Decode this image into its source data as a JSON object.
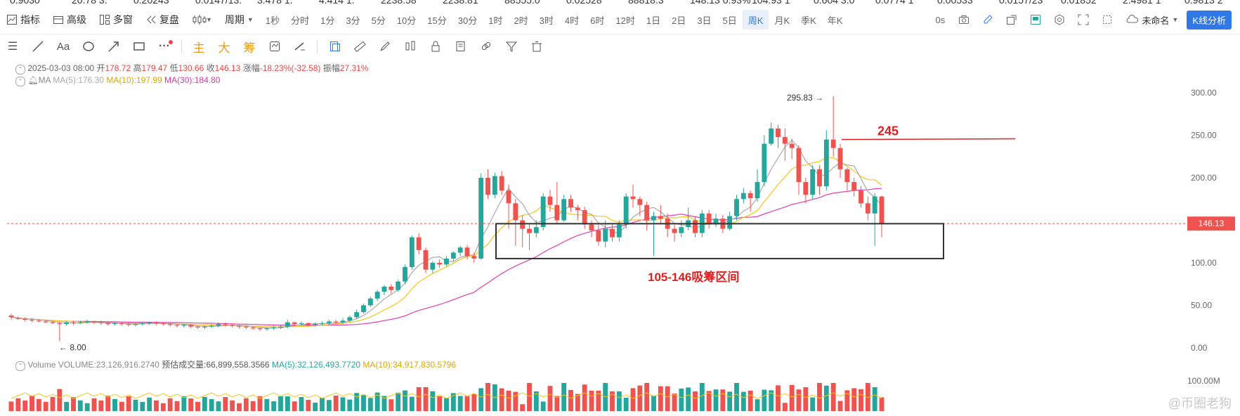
{
  "ticker": [
    "0.9030",
    "20.78 3.",
    "0.20243",
    "0.0147/13.",
    "3.478 1.",
    "4.414 1.",
    "2238.58",
    "2238.81",
    "88555.0",
    "0.02528",
    "88818.3",
    "148.13 0.93%",
    "104.93 1",
    "0.604 3.0",
    "0.0774 1",
    "0.00533",
    "0.0157/23",
    "0.01852",
    "2.4981 1",
    "0.9813 2"
  ],
  "toolbar": {
    "indicators": "指标",
    "advanced": "高级",
    "multi_window": "多窗",
    "replay": "复盘",
    "period": "周期",
    "intervals": [
      "1秒",
      "分时",
      "1分",
      "3分",
      "5分",
      "10分",
      "15分",
      "30分",
      "1时",
      "2时",
      "3时",
      "4时",
      "6时",
      "12时",
      "1日",
      "2日",
      "3日",
      "5日",
      "周K",
      "月K",
      "季K",
      "年K"
    ],
    "active_interval": "周K",
    "timer": "0s",
    "unnamed": "未命名",
    "kline_analysis": "K线分析"
  },
  "drawbar": {
    "main": "主",
    "big": "大",
    "chip": "筹"
  },
  "info": {
    "date": "2025-03-03 08:00",
    "open_label": "开",
    "open": "178.72",
    "high_label": "高",
    "high": "179.47",
    "low_label": "低",
    "low": "130.66",
    "close_label": "收",
    "close": "146.13",
    "change_label": "涨幅",
    "change": "-18.23%(-32.58)",
    "amp_label": "振幅",
    "amp": "27.31%",
    "ma_label": "MA",
    "ma5": "MA(5):176.30",
    "ma10": "MA(10):197.99",
    "ma30": "MA(30):184.80"
  },
  "volume_info": {
    "title": "Volume",
    "volume": "VOLUME:23,126,916.2740",
    "est": "预估成交量:66,899,558.3566",
    "ma5": "MA(5):32,126,493.7720",
    "ma10": "MA(10):34,917,830.5796"
  },
  "watermark": "@币圈老狗",
  "colors": {
    "up": "#26a69a",
    "down": "#ef5350",
    "ma5": "#aaaaaa",
    "ma10": "#f5c518",
    "ma30": "#e040b0",
    "accent": "#2f78e6",
    "annotation": "#e02020"
  },
  "chart_data": {
    "type": "candlestick",
    "y_axis_ticks": [
      "300.00",
      "250.00",
      "200.00",
      "150.00",
      "100.00",
      "50.00",
      "0.00"
    ],
    "ylim": [
      -5,
      320
    ],
    "last_price": "146.13",
    "high_label": "295.83",
    "low_label": "8.00",
    "volume_axis_tick": "100.00M",
    "annotations": [
      {
        "text": "245",
        "type": "horizontal-line",
        "y": 245
      },
      {
        "text": "105-146吸筹区间",
        "type": "box",
        "y_low": 105,
        "y_high": 146
      }
    ],
    "candles": [
      [
        38,
        36,
        40,
        33
      ],
      [
        35,
        34,
        37,
        33
      ],
      [
        34,
        33,
        36,
        31
      ],
      [
        33,
        32,
        35,
        30
      ],
      [
        32,
        31,
        34,
        30
      ],
      [
        31,
        30,
        33,
        29
      ],
      [
        30,
        29,
        32,
        28
      ],
      [
        29,
        28,
        31,
        8
      ],
      [
        28,
        30,
        31,
        26
      ],
      [
        30,
        29,
        32,
        27
      ],
      [
        29,
        30,
        32,
        28
      ],
      [
        30,
        31,
        33,
        29
      ],
      [
        31,
        30,
        32,
        28
      ],
      [
        30,
        29,
        32,
        27
      ],
      [
        29,
        28,
        31,
        26
      ],
      [
        28,
        29,
        30,
        26
      ],
      [
        29,
        28,
        30,
        26
      ],
      [
        28,
        27,
        30,
        25
      ],
      [
        27,
        28,
        29,
        25
      ],
      [
        28,
        29,
        31,
        26
      ],
      [
        29,
        30,
        31,
        27
      ],
      [
        30,
        29,
        31,
        27
      ],
      [
        29,
        28,
        30,
        26
      ],
      [
        28,
        27,
        29,
        25
      ],
      [
        27,
        26,
        28,
        24
      ],
      [
        26,
        27,
        28,
        24
      ],
      [
        27,
        25,
        28,
        23
      ],
      [
        25,
        24,
        26,
        22
      ],
      [
        24,
        25,
        26,
        22
      ],
      [
        25,
        26,
        28,
        23
      ],
      [
        26,
        28,
        30,
        24
      ],
      [
        28,
        27,
        30,
        25
      ],
      [
        27,
        26,
        28,
        24
      ],
      [
        26,
        25,
        27,
        23
      ],
      [
        25,
        24,
        26,
        22
      ],
      [
        24,
        23,
        25,
        21
      ],
      [
        23,
        22,
        24,
        20
      ],
      [
        22,
        23,
        24,
        20
      ],
      [
        23,
        24,
        26,
        21
      ],
      [
        24,
        25,
        27,
        22
      ],
      [
        25,
        30,
        33,
        23
      ],
      [
        30,
        28,
        31,
        25
      ],
      [
        28,
        29,
        31,
        26
      ],
      [
        29,
        27,
        30,
        25
      ],
      [
        27,
        28,
        30,
        25
      ],
      [
        28,
        29,
        31,
        26
      ],
      [
        29,
        31,
        33,
        27
      ],
      [
        31,
        30,
        33,
        28
      ],
      [
        30,
        32,
        35,
        28
      ],
      [
        32,
        36,
        38,
        30
      ],
      [
        36,
        42,
        45,
        34
      ],
      [
        42,
        50,
        52,
        40
      ],
      [
        50,
        58,
        60,
        48
      ],
      [
        58,
        66,
        68,
        55
      ],
      [
        66,
        72,
        74,
        62
      ],
      [
        72,
        68,
        75,
        64
      ],
      [
        68,
        78,
        80,
        66
      ],
      [
        78,
        95,
        98,
        75
      ],
      [
        95,
        130,
        132,
        92
      ],
      [
        130,
        115,
        135,
        110
      ],
      [
        115,
        92,
        118,
        88
      ],
      [
        92,
        100,
        102,
        88
      ],
      [
        100,
        98,
        104,
        94
      ],
      [
        98,
        105,
        108,
        96
      ],
      [
        105,
        112,
        114,
        102
      ],
      [
        112,
        118,
        120,
        108
      ],
      [
        118,
        108,
        121,
        104
      ],
      [
        108,
        105,
        112,
        100
      ],
      [
        105,
        200,
        205,
        104
      ],
      [
        200,
        180,
        210,
        175
      ],
      [
        180,
        202,
        206,
        176
      ],
      [
        202,
        185,
        208,
        180
      ],
      [
        185,
        170,
        192,
        140
      ],
      [
        170,
        150,
        175,
        120
      ],
      [
        150,
        140,
        156,
        118
      ],
      [
        140,
        135,
        145,
        115
      ],
      [
        135,
        142,
        150,
        130
      ],
      [
        142,
        178,
        182,
        138
      ],
      [
        178,
        168,
        186,
        160
      ],
      [
        168,
        150,
        195,
        145
      ],
      [
        150,
        175,
        180,
        148
      ],
      [
        175,
        165,
        180,
        160
      ],
      [
        165,
        162,
        168,
        150
      ],
      [
        162,
        145,
        166,
        140
      ],
      [
        145,
        138,
        150,
        130
      ],
      [
        138,
        125,
        145,
        120
      ],
      [
        125,
        140,
        150,
        118
      ],
      [
        140,
        130,
        145,
        125
      ],
      [
        130,
        145,
        150,
        125
      ],
      [
        145,
        178,
        182,
        140
      ],
      [
        178,
        175,
        192,
        165
      ],
      [
        175,
        168,
        178,
        155
      ],
      [
        168,
        150,
        172,
        138
      ],
      [
        150,
        155,
        160,
        108
      ],
      [
        155,
        152,
        168,
        145
      ],
      [
        152,
        140,
        158,
        130
      ],
      [
        140,
        135,
        145,
        125
      ],
      [
        135,
        142,
        150,
        130
      ],
      [
        142,
        150,
        165,
        138
      ],
      [
        150,
        135,
        155,
        130
      ],
      [
        135,
        158,
        162,
        130
      ],
      [
        158,
        145,
        162,
        140
      ],
      [
        145,
        152,
        158,
        142
      ],
      [
        152,
        140,
        156,
        135
      ],
      [
        140,
        155,
        160,
        138
      ],
      [
        155,
        175,
        180,
        150
      ],
      [
        175,
        182,
        188,
        170
      ],
      [
        182,
        176,
        185,
        160
      ],
      [
        176,
        195,
        210,
        172
      ],
      [
        195,
        240,
        250,
        190
      ],
      [
        240,
        258,
        265,
        238
      ],
      [
        258,
        248,
        262,
        235
      ],
      [
        248,
        240,
        258,
        220
      ],
      [
        240,
        235,
        246,
        222
      ],
      [
        235,
        195,
        238,
        180
      ],
      [
        195,
        180,
        200,
        170
      ],
      [
        180,
        210,
        215,
        175
      ],
      [
        210,
        190,
        215,
        180
      ],
      [
        190,
        245,
        256,
        185
      ],
      [
        245,
        235,
        296,
        225
      ],
      [
        235,
        210,
        240,
        200
      ],
      [
        210,
        195,
        212,
        185
      ],
      [
        195,
        185,
        200,
        178
      ],
      [
        185,
        170,
        190,
        165
      ],
      [
        170,
        158,
        178,
        150
      ],
      [
        158,
        178,
        182,
        120
      ],
      [
        178,
        146,
        179,
        130
      ]
    ],
    "ma_last": {
      "ma5": 176.3,
      "ma10": 197.99,
      "ma30": 184.8
    }
  }
}
